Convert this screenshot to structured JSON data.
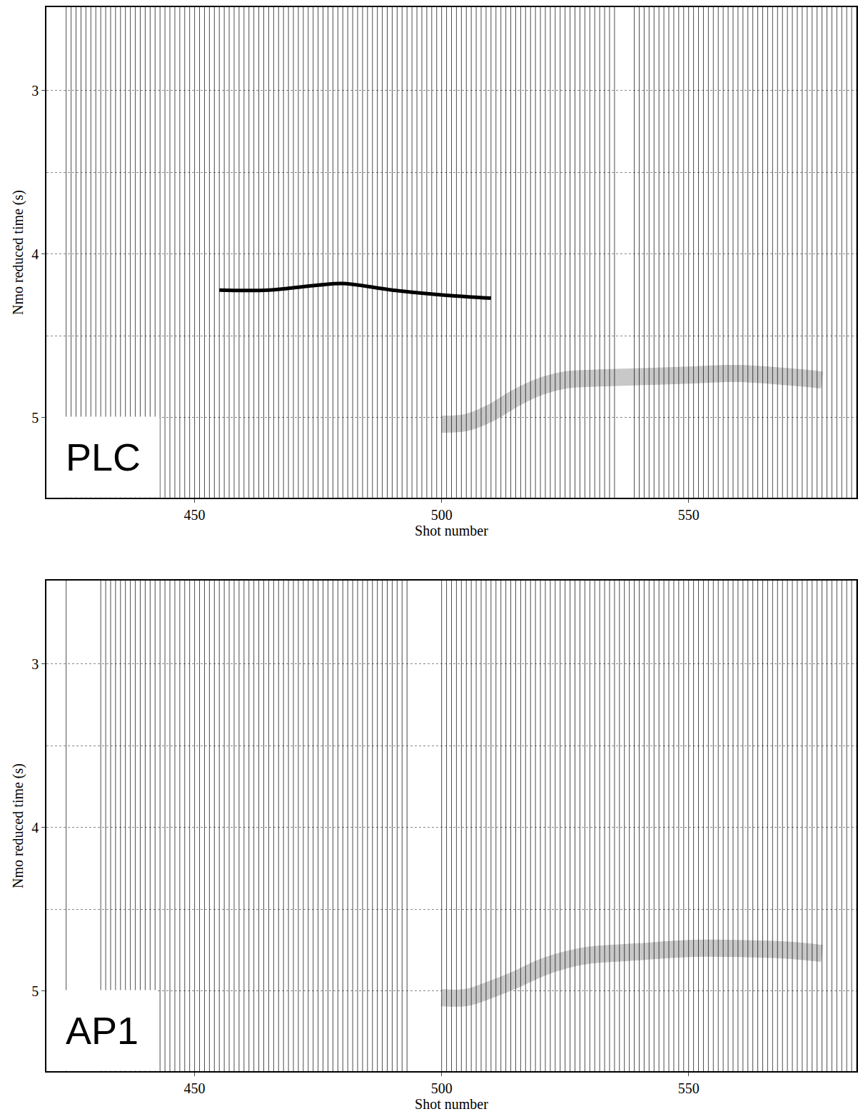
{
  "chart_data": [
    {
      "type": "wiggle",
      "title": "PLC",
      "xlabel": "Shot number",
      "ylabel": "Nmo reduced time (s)",
      "xlim": [
        420,
        584
      ],
      "ylim": [
        5.49,
        2.49
      ],
      "xticks": [
        450,
        500,
        550
      ],
      "yticks": [
        3,
        4,
        5
      ],
      "grid": true,
      "trace_ranges": [
        [
          424,
          535
        ],
        [
          539,
          584
        ]
      ],
      "series": [
        {
          "type": "line",
          "line_style": "band",
          "color": "#c8c8c8",
          "x": [
            500,
            505,
            510,
            515,
            520,
            525,
            530,
            540,
            550,
            560,
            570,
            577
          ],
          "values": [
            5.04,
            5.03,
            4.97,
            4.88,
            4.81,
            4.77,
            4.76,
            4.75,
            4.74,
            4.73,
            4.75,
            4.77
          ]
        },
        {
          "type": "line",
          "line_style": "solid",
          "color": "#000000",
          "x": [
            455,
            465,
            475,
            480,
            490,
            500,
            510
          ],
          "values": [
            4.22,
            4.22,
            4.19,
            4.18,
            4.22,
            4.25,
            4.27
          ]
        }
      ]
    },
    {
      "type": "wiggle",
      "title": "AP1",
      "xlabel": "Shot number",
      "ylabel": "Nmo reduced time (s)",
      "xlim": [
        420,
        584
      ],
      "ylim": [
        5.49,
        2.49
      ],
      "xticks": [
        450,
        500,
        550
      ],
      "yticks": [
        3,
        4,
        5
      ],
      "grid": true,
      "trace_ranges": [
        [
          424,
          424
        ],
        [
          431,
          493
        ],
        [
          500,
          584
        ]
      ],
      "series": [
        {
          "type": "line",
          "line_style": "band",
          "color": "#c8c8c8",
          "x": [
            500,
            505,
            510,
            515,
            520,
            525,
            530,
            540,
            550,
            560,
            570,
            577
          ],
          "values": [
            5.04,
            5.04,
            4.99,
            4.93,
            4.86,
            4.81,
            4.78,
            4.76,
            4.74,
            4.74,
            4.75,
            4.77
          ]
        }
      ]
    }
  ]
}
